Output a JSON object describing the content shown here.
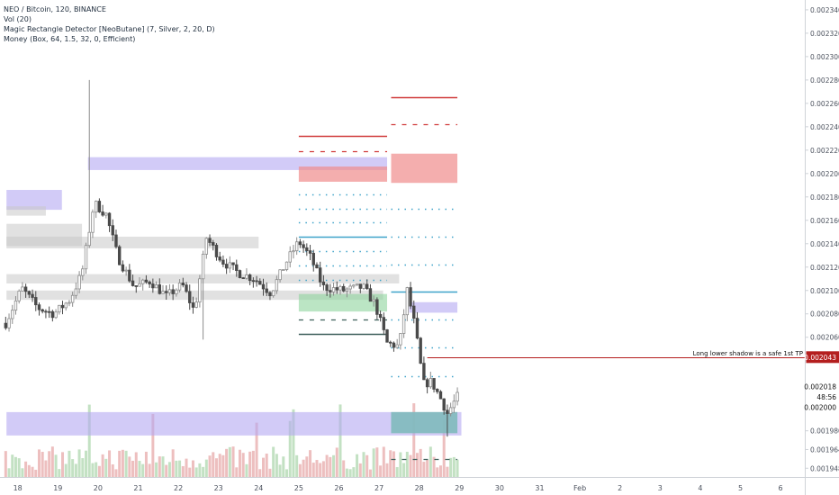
{
  "header": {
    "symbol_line": "NEO / Bitcoin, 120, BINANCE",
    "indicator_1": "Vol (20)",
    "indicator_2": "Magic Rectangle Detector [NeoButane] (7, Silver, 2, 20, D)",
    "indicator_3": "Money (Box, 64, 1.5, 32, 0, Efficient)"
  },
  "colors": {
    "up": "#8c8c8c",
    "down": "#4a4a4a",
    "vol_up": "#b9dcb9",
    "vol_down": "#eab4b4",
    "purple_zone": "#b4a9f2",
    "gray_zone": "#c8c8c8",
    "red_zone": "#f08c8c",
    "green_zone": "#8ed39d",
    "teal_zone": "#7fb6c2",
    "red_line": "#d03a3a",
    "blue_line": "#3fa3c9",
    "dark_line": "#3d5f5a",
    "annotation_line": "#b41e1e",
    "axis_text": "#4c525e"
  },
  "chart_data": {
    "type": "candlestick",
    "symbol": "NEO / Bitcoin",
    "interval": "120",
    "exchange": "BINANCE",
    "y_axis": {
      "position": "right",
      "ylim": [
        0.0019405,
        0.0023484
      ],
      "tick_labels": [
        "0.002340",
        "0.002320",
        "0.002300",
        "0.002280",
        "0.002260",
        "0.002240",
        "0.002220",
        "0.002200",
        "0.002180",
        "0.002160",
        "0.002140",
        "0.002120",
        "0.002100",
        "0.002080",
        "0.002060",
        "0.001980",
        "0.001964",
        "0.001948"
      ],
      "price_flags": [
        {
          "label": "0.002043",
          "value": 0.002043,
          "color": "#b41e1e"
        },
        {
          "label": "0.002018",
          "value": 0.002018,
          "color": "#ffffff"
        },
        {
          "label": "48:56",
          "value": 0.002009,
          "color": "#ffffff"
        },
        {
          "label": "0.002000",
          "value": 0.002,
          "color": "#ffffff"
        }
      ]
    },
    "x_axis": {
      "range_days": [
        17.6,
        28.9
      ],
      "tick_labels": [
        {
          "label": "18",
          "day": 17.9
        },
        {
          "label": "19",
          "day": 18.9
        },
        {
          "label": "20",
          "day": 19.9
        },
        {
          "label": "21",
          "day": 20.9
        },
        {
          "label": "22",
          "day": 21.9
        },
        {
          "label": "23",
          "day": 22.9
        },
        {
          "label": "24",
          "day": 23.9
        },
        {
          "label": "25",
          "day": 24.9
        },
        {
          "label": "26",
          "day": 25.9
        },
        {
          "label": "27",
          "day": 26.9
        },
        {
          "label": "28",
          "day": 27.9
        },
        {
          "label": "29",
          "day": 28.9
        },
        {
          "label": "30",
          "day": 29.9
        },
        {
          "label": "31",
          "day": 30.9
        },
        {
          "label": "Feb",
          "day": 31.9
        },
        {
          "label": "2",
          "day": 32.9
        },
        {
          "label": "3",
          "day": 33.9
        },
        {
          "label": "4",
          "day": 34.9
        },
        {
          "label": "5",
          "day": 35.9
        },
        {
          "label": "6",
          "day": 36.9
        }
      ]
    },
    "price_path": [
      [
        17.6,
        0.002072
      ],
      [
        18.0,
        0.002102
      ],
      [
        18.4,
        0.002085
      ],
      [
        18.8,
        0.00208
      ],
      [
        19.2,
        0.002092
      ],
      [
        19.5,
        0.002115
      ],
      [
        19.8,
        0.002175
      ],
      [
        20.1,
        0.002165
      ],
      [
        20.4,
        0.002128
      ],
      [
        20.8,
        0.002103
      ],
      [
        21.2,
        0.002108
      ],
      [
        21.6,
        0.002095
      ],
      [
        22.0,
        0.002105
      ],
      [
        22.3,
        0.002082
      ],
      [
        22.6,
        0.002145
      ],
      [
        23.0,
        0.002125
      ],
      [
        23.4,
        0.002115
      ],
      [
        23.8,
        0.00211
      ],
      [
        24.2,
        0.002098
      ],
      [
        24.6,
        0.002125
      ],
      [
        24.9,
        0.002142
      ],
      [
        25.2,
        0.002128
      ],
      [
        25.5,
        0.002103
      ],
      [
        26.0,
        0.0021
      ],
      [
        26.5,
        0.002103
      ],
      [
        26.8,
        0.002088
      ],
      [
        27.1,
        0.002055
      ],
      [
        27.4,
        0.002052
      ],
      [
        27.6,
        0.0021
      ],
      [
        27.8,
        0.002068
      ],
      [
        28.0,
        0.00202
      ],
      [
        28.2,
        0.002022
      ],
      [
        28.4,
        0.00201
      ],
      [
        28.6,
        0.001995
      ],
      [
        28.9,
        0.002012
      ]
    ],
    "price_extremes": [
      {
        "day": 19.7,
        "high": 0.00228
      },
      {
        "day": 22.5,
        "low": 0.002058
      },
      {
        "day": 28.6,
        "low": 0.001975
      }
    ],
    "zones": [
      {
        "name": "purple-zone-left",
        "type": "purple",
        "x": [
          17.62,
          19.0
        ],
        "y": [
          0.002169,
          0.002186
        ]
      },
      {
        "name": "gray-zone-left-a",
        "type": "gray",
        "x": [
          17.62,
          18.6
        ],
        "y": [
          0.002164,
          0.002172
        ]
      },
      {
        "name": "gray-zone-left-b",
        "type": "gray",
        "x": [
          17.62,
          19.5
        ],
        "y": [
          0.002138,
          0.002157
        ]
      },
      {
        "name": "purple-zone-top",
        "type": "purple",
        "x": [
          19.65,
          27.1
        ],
        "y": [
          0.002203,
          0.002214
        ]
      },
      {
        "name": "gray-zone-mid-a",
        "type": "gray",
        "x": [
          17.62,
          23.9
        ],
        "y": [
          0.002136,
          0.002146
        ]
      },
      {
        "name": "gray-zone-mid-b",
        "type": "gray",
        "x": [
          17.62,
          27.4
        ],
        "y": [
          0.002106,
          0.002114
        ]
      },
      {
        "name": "gray-zone-mid-c",
        "type": "gray",
        "x": [
          17.62,
          27.0
        ],
        "y": [
          0.002092,
          0.0021
        ]
      },
      {
        "name": "purple-zone-bottom",
        "type": "purple",
        "x": [
          17.62,
          28.95
        ],
        "y": [
          0.001976,
          0.001996
        ]
      },
      {
        "name": "red-zone-a",
        "type": "red",
        "x": [
          24.9,
          27.1
        ],
        "y": [
          0.002193,
          0.002206
        ]
      },
      {
        "name": "red-zone-b",
        "type": "red",
        "x": [
          27.2,
          28.85
        ],
        "y": [
          0.002192,
          0.002217
        ]
      },
      {
        "name": "green-zone-a",
        "type": "green",
        "x": [
          24.9,
          27.1
        ],
        "y": [
          0.002082,
          0.002097
        ]
      },
      {
        "name": "green-zone-b",
        "type": "green",
        "x": [
          27.2,
          28.85
        ],
        "y": [
          0.001978,
          0.001996
        ]
      },
      {
        "name": "purple-zone-small",
        "type": "purple",
        "x": [
          27.65,
          28.85
        ],
        "y": [
          0.002081,
          0.00209
        ]
      },
      {
        "name": "teal-zone",
        "type": "teal",
        "x": [
          27.2,
          28.85
        ],
        "y": [
          0.001978,
          0.001996
        ]
      }
    ],
    "level_lines": [
      {
        "name": "level-red-a",
        "style": "solid",
        "color": "red",
        "x": [
          24.9,
          27.1
        ],
        "value": 0.002232
      },
      {
        "name": "level-red-dash-a",
        "style": "dashed",
        "color": "red",
        "x": [
          24.9,
          27.1
        ],
        "value": 0.002219
      },
      {
        "name": "level-blue-dot-a1",
        "style": "dotted",
        "color": "blue",
        "x": [
          24.9,
          27.1
        ],
        "value": 0.002182
      },
      {
        "name": "level-blue-dot-a2",
        "style": "dotted",
        "color": "blue",
        "x": [
          24.9,
          27.1
        ],
        "value": 0.00217
      },
      {
        "name": "level-blue-dot-a3",
        "style": "dotted",
        "color": "blue",
        "x": [
          24.9,
          27.1
        ],
        "value": 0.002158
      },
      {
        "name": "level-blue-a",
        "style": "solid",
        "color": "blue",
        "x": [
          24.9,
          27.1
        ],
        "value": 0.002146
      },
      {
        "name": "level-blue-dot-a4",
        "style": "dotted",
        "color": "blue",
        "x": [
          24.9,
          27.1
        ],
        "value": 0.002134
      },
      {
        "name": "level-blue-dot-a5",
        "style": "dotted",
        "color": "blue",
        "x": [
          24.9,
          27.1
        ],
        "value": 0.002121
      },
      {
        "name": "level-blue-dot-a6",
        "style": "dotted",
        "color": "blue",
        "x": [
          24.9,
          27.1
        ],
        "value": 0.002109
      },
      {
        "name": "level-dark-dash-a",
        "style": "dashed",
        "color": "dark",
        "x": [
          24.9,
          27.1
        ],
        "value": 0.002075
      },
      {
        "name": "level-dark-a",
        "style": "solid",
        "color": "dark",
        "x": [
          24.9,
          27.1
        ],
        "value": 0.002063
      },
      {
        "name": "level-red-b",
        "style": "solid",
        "color": "red",
        "x": [
          27.2,
          28.85
        ],
        "value": 0.002265
      },
      {
        "name": "level-red-dash-b",
        "style": "dashed",
        "color": "red",
        "x": [
          27.2,
          28.85
        ],
        "value": 0.002242
      },
      {
        "name": "level-blue-dot-b1",
        "style": "dotted",
        "color": "blue",
        "x": [
          27.2,
          28.85
        ],
        "value": 0.00217
      },
      {
        "name": "level-blue-dot-b2",
        "style": "dotted",
        "color": "blue",
        "x": [
          27.2,
          28.85
        ],
        "value": 0.002146
      },
      {
        "name": "level-blue-dot-b3",
        "style": "dotted",
        "color": "blue",
        "x": [
          27.2,
          28.85
        ],
        "value": 0.002122
      },
      {
        "name": "level-blue-b",
        "style": "solid",
        "color": "blue",
        "x": [
          27.2,
          28.85
        ],
        "value": 0.002099
      },
      {
        "name": "level-blue-dot-b4",
        "style": "dotted",
        "color": "blue",
        "x": [
          27.2,
          28.85
        ],
        "value": 0.002075
      },
      {
        "name": "level-blue-dot-b5",
        "style": "dotted",
        "color": "blue",
        "x": [
          27.2,
          28.85
        ],
        "value": 0.002051
      },
      {
        "name": "level-blue-dot-b6",
        "style": "dotted",
        "color": "blue",
        "x": [
          27.2,
          28.85
        ],
        "value": 0.002027
      },
      {
        "name": "level-dark-dash-b",
        "style": "dashed",
        "color": "dark",
        "x": [
          27.2,
          28.85
        ],
        "value": 0.001956
      }
    ],
    "annotation": {
      "text": "Long lower shadow is a safe 1st TP",
      "value": 0.002043,
      "x_start": 28.1
    }
  }
}
